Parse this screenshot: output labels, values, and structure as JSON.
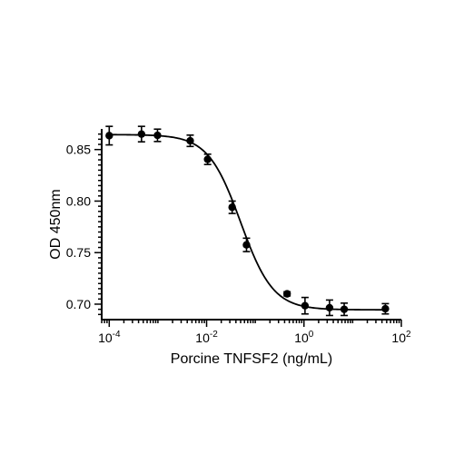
{
  "chart_data": {
    "type": "scatter",
    "title": "",
    "xlabel": "Porcine TNFSF2 (ng/mL)",
    "ylabel": "OD 450nm",
    "x_scale": "log",
    "xlim": [
      7e-05,
      100
    ],
    "ylim": [
      0.685,
      0.87
    ],
    "x_ticks": [
      {
        "value": 0.0001,
        "base": "10",
        "exp": "-4"
      },
      {
        "value": 0.01,
        "base": "10",
        "exp": "-2"
      },
      {
        "value": 1,
        "base": "10",
        "exp": "0"
      },
      {
        "value": 100,
        "base": "10",
        "exp": "2"
      }
    ],
    "y_ticks": [
      {
        "value": 0.7,
        "label": "0.70"
      },
      {
        "value": 0.75,
        "label": "0.75"
      },
      {
        "value": 0.8,
        "label": "0.80"
      },
      {
        "value": 0.85,
        "label": "0.85"
      }
    ],
    "grid": false,
    "legend": "none",
    "color": "#000000",
    "series": [
      {
        "x": [
          0.0001,
          0.00046,
          0.00098,
          0.0046,
          0.0105,
          0.0335,
          0.066,
          0.45,
          1.05,
          3.35,
          6.7,
          47
        ],
        "y": [
          0.8635,
          0.865,
          0.8638,
          0.8585,
          0.8405,
          0.794,
          0.7575,
          0.71,
          0.6985,
          0.6965,
          0.695,
          0.6955
        ],
        "error": [
          0.009,
          0.0075,
          0.006,
          0.0055,
          0.005,
          0.006,
          0.0065,
          0.002,
          0.008,
          0.0075,
          0.006,
          0.005
        ]
      }
    ],
    "fit_curve": {
      "model": "4PL",
      "top": 0.8645,
      "bottom": 0.6945,
      "ec50": 0.05,
      "hill": 1.3
    }
  }
}
